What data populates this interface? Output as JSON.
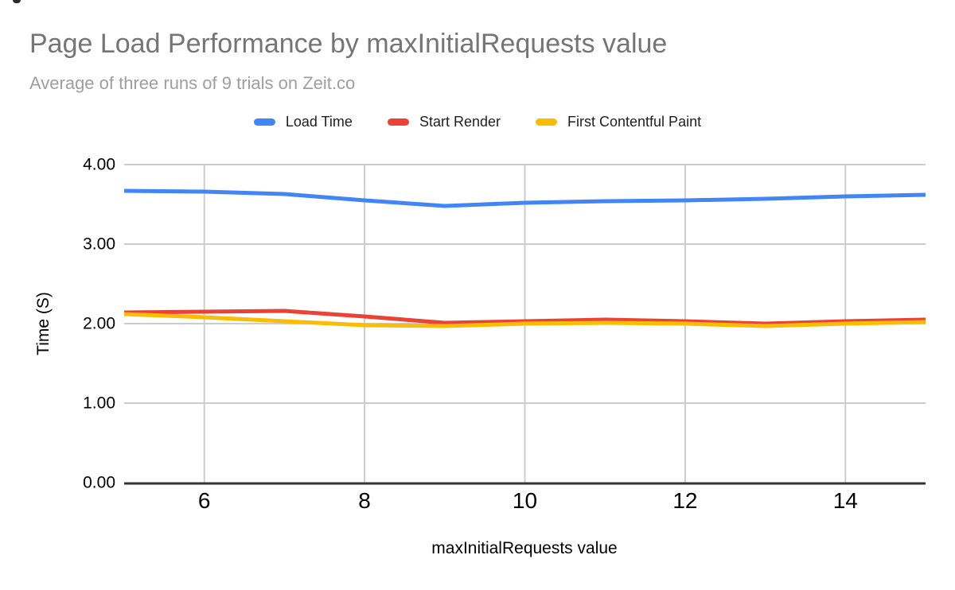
{
  "header": {
    "title": "Page Load Performance by maxInitialRequests value",
    "subtitle": "Average of three runs of 9 trials on Zeit.co"
  },
  "chart_data": {
    "type": "line",
    "title": "Page Load Performance by maxInitialRequests value",
    "subtitle": "Average of three runs of 9 trials on Zeit.co",
    "xlabel": "maxInitialRequests value",
    "ylabel": "Time (S)",
    "x": [
      5,
      6,
      7,
      8,
      9,
      10,
      11,
      12,
      13,
      14,
      15
    ],
    "series": [
      {
        "name": "Load Time",
        "color": "#4285F4",
        "values": [
          3.67,
          3.66,
          3.63,
          3.55,
          3.48,
          3.52,
          3.54,
          3.55,
          3.57,
          3.6,
          3.62
        ]
      },
      {
        "name": "Start Render",
        "color": "#EA4335",
        "values": [
          2.14,
          2.15,
          2.16,
          2.09,
          2.01,
          2.03,
          2.05,
          2.03,
          2.0,
          2.03,
          2.05
        ]
      },
      {
        "name": "First Contentful Paint",
        "color": "#FBBC04",
        "values": [
          2.12,
          2.08,
          2.03,
          1.98,
          1.97,
          2.0,
          2.01,
          2.0,
          1.97,
          2.0,
          2.02
        ]
      }
    ],
    "xlim": [
      5,
      15
    ],
    "ylim": [
      0,
      4
    ],
    "x_ticks": [
      "6",
      "8",
      "10",
      "12",
      "14"
    ],
    "y_ticks": [
      "0.00",
      "1.00",
      "2.00",
      "3.00",
      "4.00"
    ],
    "grid": true,
    "legend_position": "top"
  },
  "style": {
    "grid_color": "#cccccc",
    "axis_color": "#333333",
    "title_color": "#757575",
    "subtitle_color": "#9e9e9e"
  }
}
